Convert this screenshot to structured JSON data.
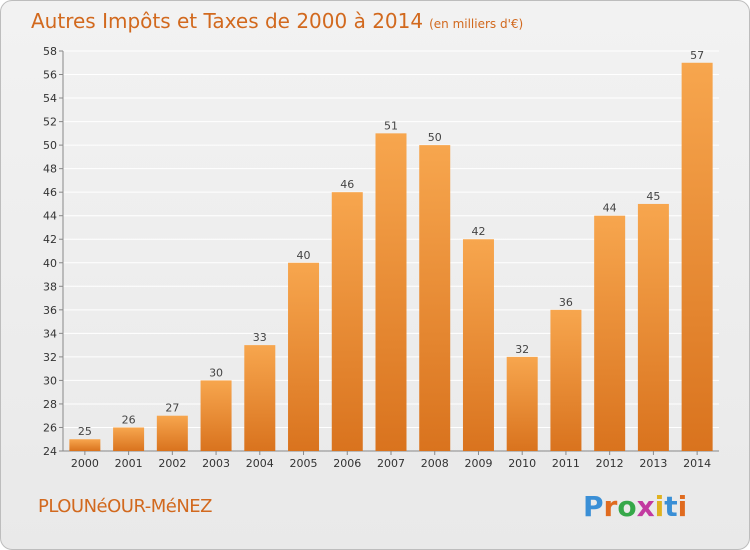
{
  "header": {
    "title": "Autres Impôts et Taxes de 2000 à 2014",
    "unit": "(en milliers d'€)"
  },
  "footer": {
    "commune": "PLOUNéOUR-MéNEZ",
    "brand_letters": [
      "P",
      "r",
      "o",
      "x",
      "i",
      "t",
      "i"
    ],
    "brand_colors": [
      "#3a8fd6",
      "#e06b1f",
      "#36a84a",
      "#c23aa0",
      "#e0b21f",
      "#3a8fd6",
      "#e06b1f"
    ]
  },
  "colors": {
    "bar_light": "#f7a64e",
    "bar_dark": "#d9731e",
    "grid": "#ffffff",
    "axis": "#888888"
  },
  "chart_data": {
    "type": "bar",
    "title": "Autres Impôts et Taxes de 2000 à 2014",
    "ylabel": "",
    "xlabel": "",
    "categories": [
      "2000",
      "2001",
      "2002",
      "2003",
      "2004",
      "2005",
      "2006",
      "2007",
      "2008",
      "2009",
      "2010",
      "2011",
      "2012",
      "2013",
      "2014"
    ],
    "values": [
      25,
      26,
      27,
      30,
      33,
      40,
      46,
      51,
      50,
      42,
      32,
      36,
      44,
      45,
      57
    ],
    "ylim": [
      24,
      58
    ],
    "ytick_step": 2,
    "grid": true
  }
}
